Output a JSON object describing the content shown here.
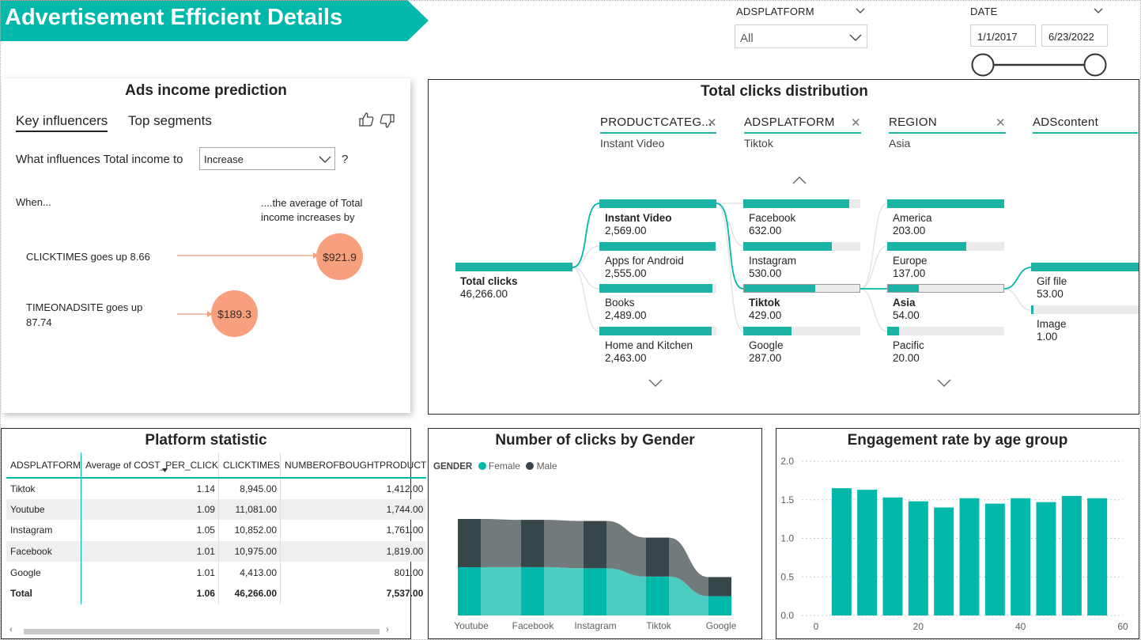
{
  "header": {
    "title": "Advertisement Efficient Details",
    "banner_color": "#01b8aa"
  },
  "filters": {
    "platform": {
      "label": "ADSPLATFORM",
      "selected": "All"
    },
    "date": {
      "label": "DATE",
      "start": "1/1/2017",
      "end": "6/23/2022"
    }
  },
  "influencers": {
    "title": "Ads income prediction",
    "tabs": [
      "Key influencers",
      "Top segments"
    ],
    "question_prefix": "What influences Total income to",
    "question_value": "Increase",
    "question_suffix": "?",
    "when_label": "When...",
    "effect_label": "....the average of Total income increases by",
    "items": [
      {
        "condition": "CLICKTIMES goes up 8.66",
        "effect": "$921.9"
      },
      {
        "condition": "TIMEONADSITE goes up 87.74",
        "effect": "$189.3"
      }
    ]
  },
  "tree": {
    "title": "Total clicks distribution",
    "levels": [
      {
        "field": "PRODUCTCATEG...",
        "selection": "Instant Video"
      },
      {
        "field": "ADSPLATFORM",
        "selection": "Tiktok"
      },
      {
        "field": "REGION",
        "selection": "Asia"
      },
      {
        "field": "ADScontent",
        "selection": ""
      }
    ],
    "root": {
      "label": "Total clicks",
      "value": "46,266.00"
    },
    "columns": [
      {
        "nodes": [
          {
            "label": "Instant Video",
            "value": "2,569.00",
            "fraction": 1.0,
            "selected": true
          },
          {
            "label": "Apps for Android",
            "value": "2,555.00",
            "fraction": 0.995,
            "selected": false
          },
          {
            "label": "Books",
            "value": "2,489.00",
            "fraction": 0.969,
            "selected": false
          },
          {
            "label": "Home and Kitchen",
            "value": "2,463.00",
            "fraction": 0.959,
            "selected": false
          }
        ]
      },
      {
        "nodes": [
          {
            "label": "Facebook",
            "value": "632.00",
            "fraction": 0.905,
            "selected": false
          },
          {
            "label": "Instagram",
            "value": "530.00",
            "fraction": 0.76,
            "selected": false
          },
          {
            "label": "Tiktok",
            "value": "429.00",
            "fraction": 0.615,
            "selected": true
          },
          {
            "label": "Google",
            "value": "287.00",
            "fraction": 0.41,
            "selected": false
          }
        ]
      },
      {
        "nodes": [
          {
            "label": "America",
            "value": "203.00",
            "fraction": 1.0,
            "selected": false
          },
          {
            "label": "Europe",
            "value": "137.00",
            "fraction": 0.675,
            "selected": false
          },
          {
            "label": "Asia",
            "value": "54.00",
            "fraction": 0.266,
            "selected": true
          },
          {
            "label": "Pacific",
            "value": "20.00",
            "fraction": 0.099,
            "selected": false
          }
        ]
      },
      {
        "nodes": [
          {
            "label": "Gif file",
            "value": "53.00",
            "fraction": 1.0,
            "selected": false
          },
          {
            "label": "Image",
            "value": "1.00",
            "fraction": 0.02,
            "selected": false
          }
        ]
      }
    ]
  },
  "platform_table": {
    "title": "Platform statistic",
    "columns": [
      "ADSPLATFORM",
      "Average of COST_PER_CLICK",
      "CLICKTIMES",
      "NUMBEROFBOUGHTPRODUCT"
    ],
    "rows": [
      [
        "Tiktok",
        "1.14",
        "8,945.00",
        "1,412.00"
      ],
      [
        "Youtube",
        "1.09",
        "11,081.00",
        "1,744.00"
      ],
      [
        "Instagram",
        "1.05",
        "10,852.00",
        "1,761.00"
      ],
      [
        "Facebook",
        "1.01",
        "10,975.00",
        "1,819.00"
      ],
      [
        "Google",
        "1.01",
        "4,413.00",
        "801.00"
      ]
    ],
    "total": [
      "Total",
      "1.06",
      "46,266.00",
      "7,537.00"
    ]
  },
  "chart_data": [
    {
      "type": "area",
      "title": "Number of clicks by Gender",
      "legend_title": "GENDER",
      "categories": [
        "Youtube",
        "Facebook",
        "Instagram",
        "Tiktok",
        "Google"
      ],
      "series": [
        {
          "name": "Female",
          "values": [
            5540,
            5550,
            5420,
            4470,
            2210
          ],
          "color": "#01b8aa"
        },
        {
          "name": "Male",
          "values": [
            5540,
            5430,
            5430,
            4470,
            2200
          ],
          "color": "#374649"
        }
      ]
    },
    {
      "type": "bar",
      "title": "Engagement rate by age group",
      "x": [
        5,
        10,
        15,
        20,
        25,
        30,
        35,
        40,
        45,
        50,
        55
      ],
      "values": [
        1.65,
        1.63,
        1.53,
        1.48,
        1.4,
        1.52,
        1.45,
        1.52,
        1.47,
        1.55,
        1.52
      ],
      "xticks": [
        "0",
        "20",
        "40",
        "60"
      ],
      "yticks": [
        "0.0",
        "0.5",
        "1.0",
        "1.5",
        "2.0"
      ],
      "xlim": [
        0,
        60
      ],
      "ylim": [
        0,
        2.0
      ],
      "color": "#01b8aa"
    }
  ]
}
